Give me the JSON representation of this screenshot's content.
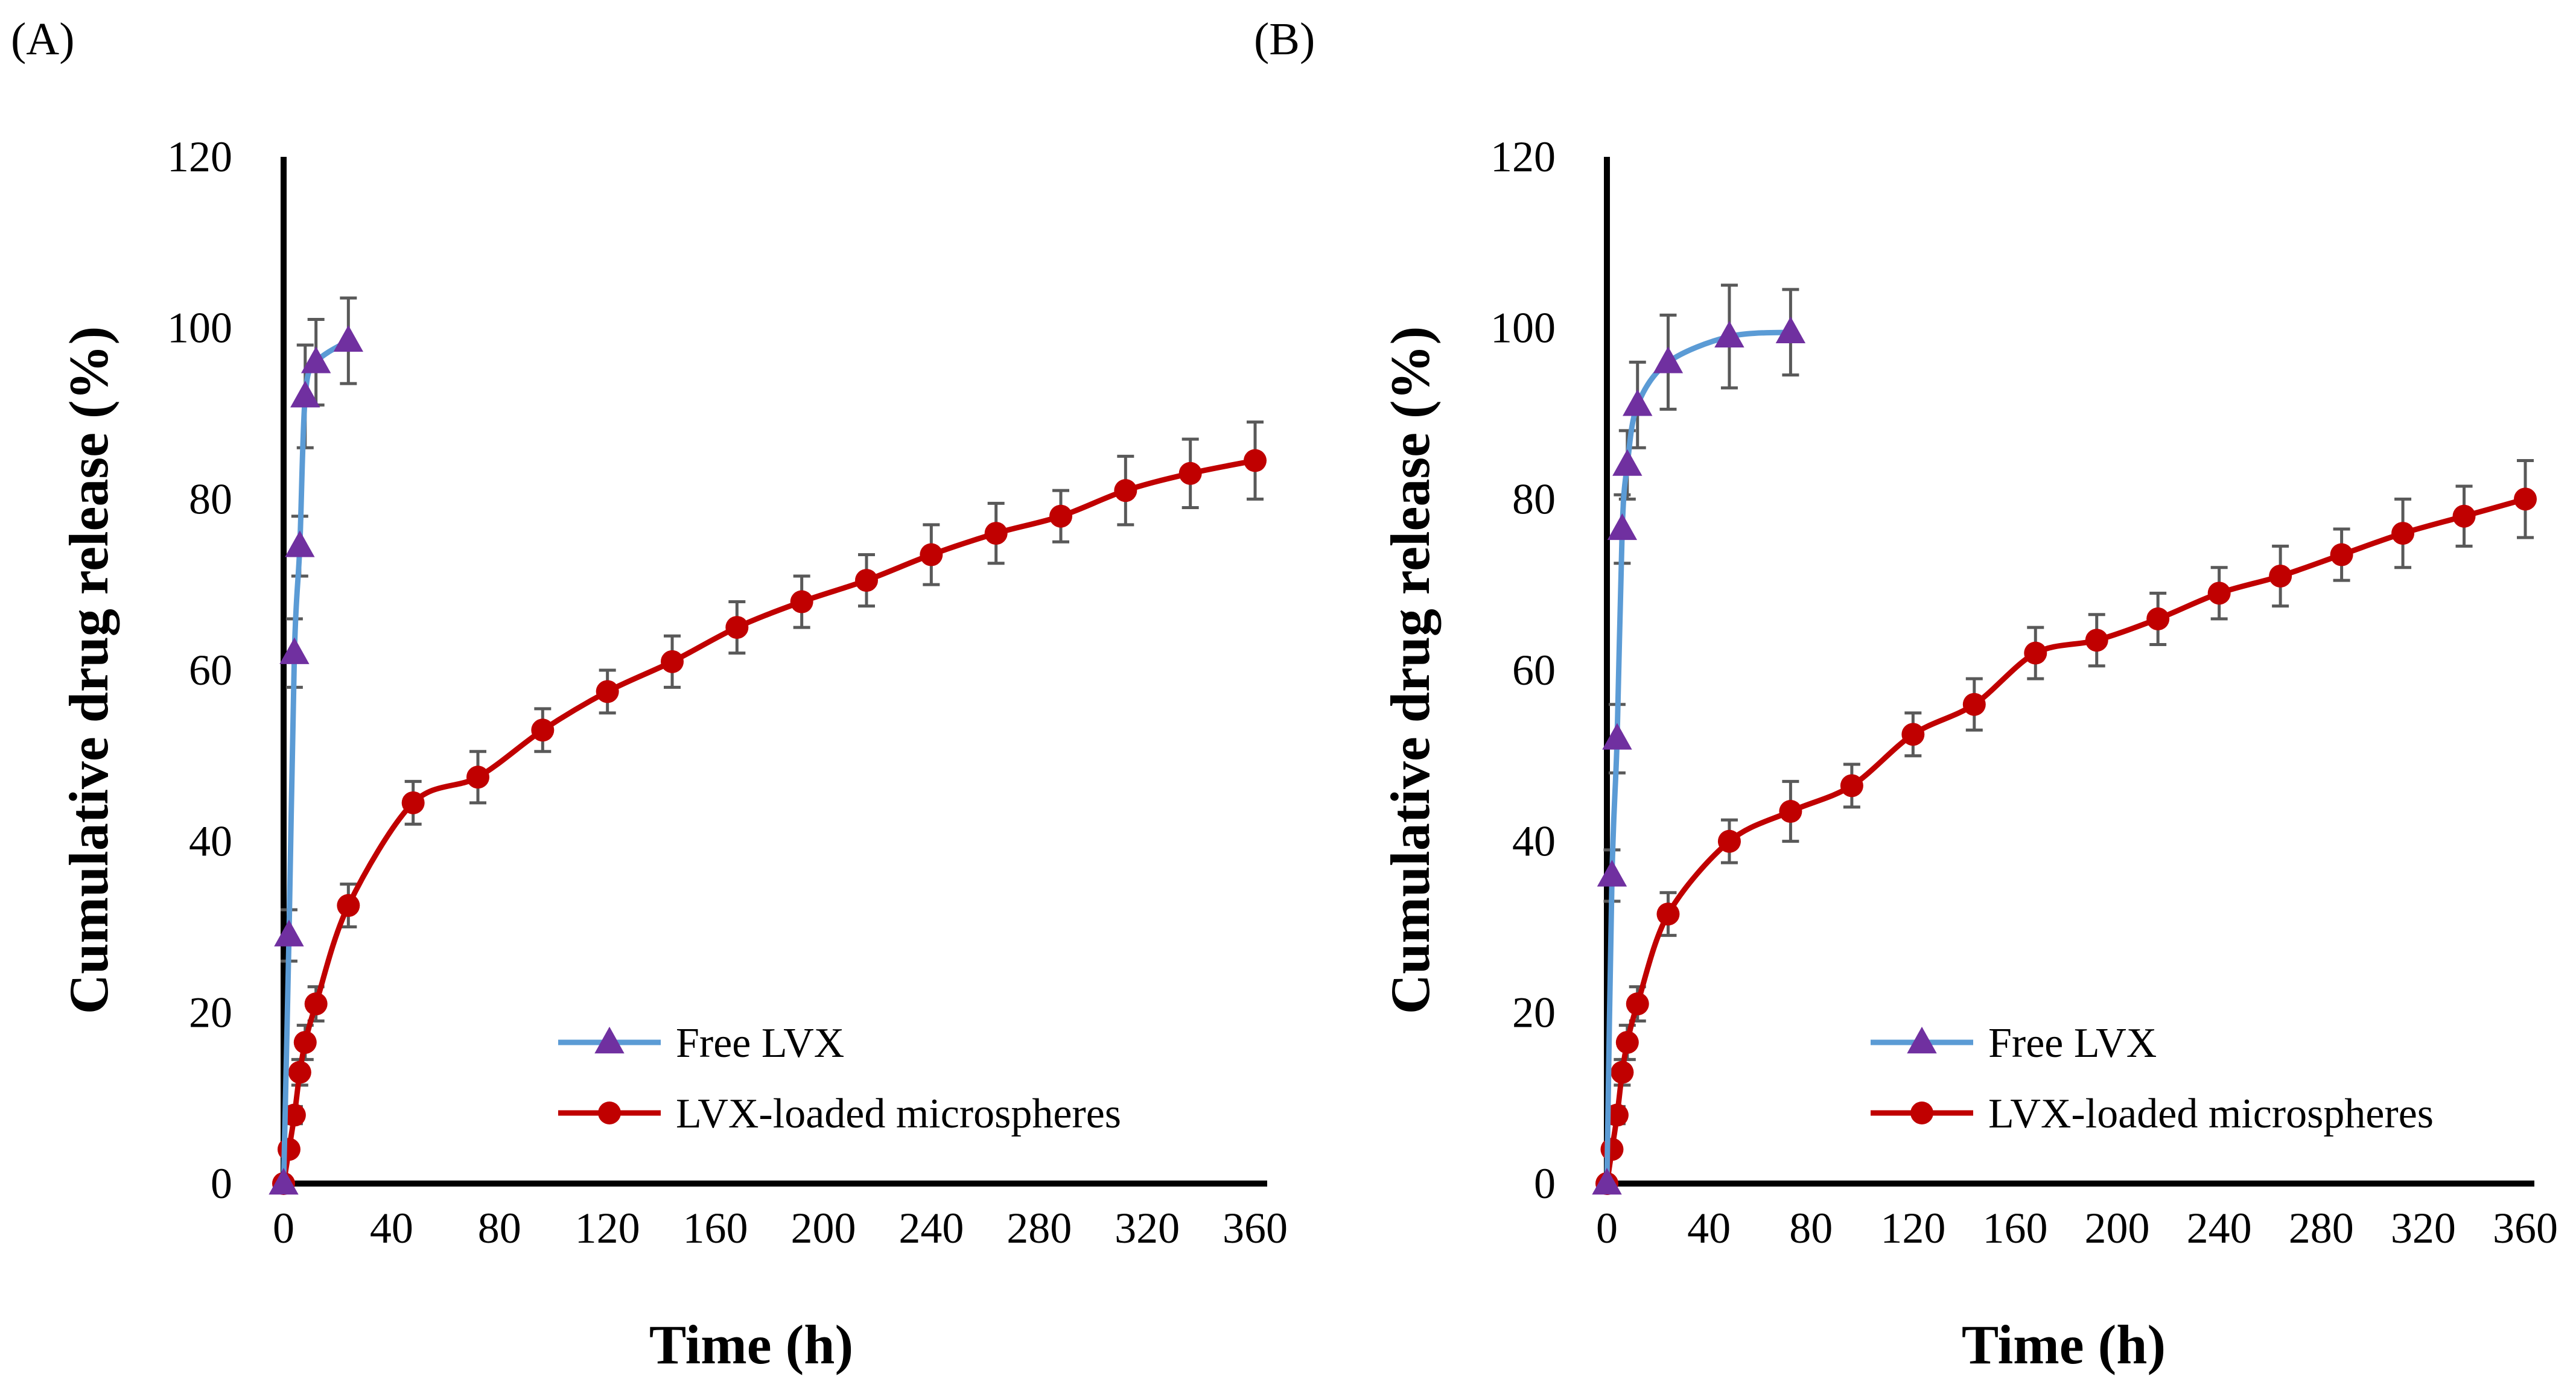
{
  "chart_data": [
    {
      "type": "line",
      "panel_label": "(A)",
      "xlabel": "Time (h)",
      "ylabel": "Cumulative drug release (%)",
      "xlim": [
        0,
        360
      ],
      "ylim": [
        0,
        120
      ],
      "xticks": [
        0,
        40,
        80,
        120,
        160,
        200,
        240,
        280,
        320,
        360
      ],
      "yticks": [
        0,
        20,
        40,
        60,
        80,
        100,
        120
      ],
      "grid": false,
      "legend_position": "bottom-right",
      "series": [
        {
          "name": "Free LVX",
          "color": "#5B9BD5",
          "marker": "triangle",
          "marker_color": "#7030A0",
          "x": [
            0,
            2,
            4,
            6,
            8,
            12,
            24
          ],
          "y": [
            0,
            29,
            62,
            74.5,
            92,
            96,
            98.5
          ],
          "err": [
            0,
            3,
            4,
            3.5,
            6,
            5,
            5
          ]
        },
        {
          "name": "LVX-loaded microspheres",
          "color": "#C00000",
          "marker": "circle",
          "marker_color": "#C00000",
          "x": [
            0,
            2,
            4,
            6,
            8,
            12,
            24,
            48,
            72,
            96,
            120,
            144,
            168,
            192,
            216,
            240,
            264,
            288,
            312,
            336,
            360
          ],
          "y": [
            0,
            4,
            8,
            13,
            16.5,
            21,
            32.5,
            44.5,
            47.5,
            53,
            57.5,
            61,
            65,
            68,
            70.5,
            73.5,
            76,
            78,
            81,
            83,
            84.5
          ],
          "err": [
            0,
            0.5,
            1,
            1.5,
            2,
            2,
            2.5,
            2.5,
            3,
            2.5,
            2.5,
            3,
            3,
            3,
            3,
            3.5,
            3.5,
            3,
            4,
            4,
            4.5
          ]
        }
      ]
    },
    {
      "type": "line",
      "panel_label": "(B)",
      "xlabel": "Time (h)",
      "ylabel": "Cumulative drug release (%)",
      "xlim": [
        0,
        360
      ],
      "ylim": [
        0,
        120
      ],
      "xticks": [
        0,
        40,
        80,
        120,
        160,
        200,
        240,
        280,
        320,
        360
      ],
      "yticks": [
        0,
        20,
        40,
        60,
        80,
        100,
        120
      ],
      "grid": false,
      "legend_position": "bottom-right",
      "series": [
        {
          "name": "Free LVX",
          "color": "#5B9BD5",
          "marker": "triangle",
          "marker_color": "#7030A0",
          "x": [
            0,
            2,
            4,
            6,
            8,
            12,
            24,
            48,
            72
          ],
          "y": [
            0,
            36,
            52,
            76.5,
            84,
            91,
            96,
            99,
            99.5
          ],
          "err": [
            0,
            3,
            4,
            4,
            4,
            5,
            5.5,
            6,
            5
          ]
        },
        {
          "name": "LVX-loaded microspheres",
          "color": "#C00000",
          "marker": "circle",
          "marker_color": "#C00000",
          "x": [
            0,
            2,
            4,
            6,
            8,
            12,
            24,
            48,
            72,
            96,
            120,
            144,
            168,
            192,
            216,
            240,
            264,
            288,
            312,
            336,
            360
          ],
          "y": [
            0,
            4,
            8,
            13,
            16.5,
            21,
            31.5,
            40,
            43.5,
            46.5,
            52.5,
            56,
            62,
            63.5,
            66,
            69,
            71,
            73.5,
            76,
            78,
            80
          ],
          "err": [
            0,
            0.5,
            1,
            1.5,
            2,
            2,
            2.5,
            2.5,
            3.5,
            2.5,
            2.5,
            3,
            3,
            3,
            3,
            3,
            3.5,
            3,
            4,
            3.5,
            4.5
          ]
        }
      ]
    }
  ]
}
